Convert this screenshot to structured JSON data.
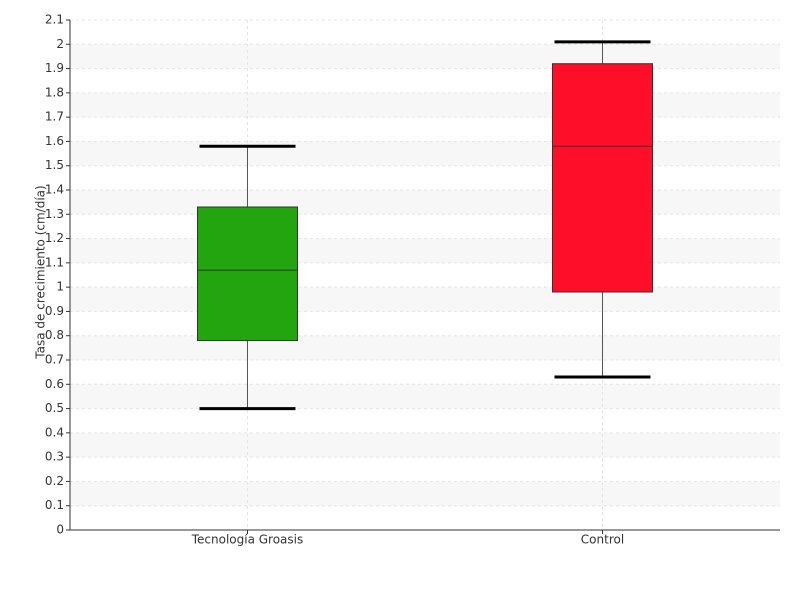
{
  "chart_data": {
    "type": "box",
    "y_label": "Tasa de crecimiento (cm/día)",
    "categories": [
      "Tecnología Groasis",
      "Control"
    ],
    "boxes": [
      {
        "min": 0.5,
        "q1": 0.78,
        "median": 1.07,
        "q3": 1.33,
        "max": 1.58,
        "color": "#22a50f"
      },
      {
        "min": 0.63,
        "q1": 0.98,
        "median": 1.58,
        "q3": 1.92,
        "max": 2.01,
        "color": "#ff0e2a"
      }
    ],
    "ylim": [
      0,
      2.1
    ],
    "yticks": [
      0,
      0.1,
      0.2,
      0.3,
      0.4,
      0.5,
      0.6,
      0.7,
      0.8,
      0.9,
      1,
      1.1,
      1.2,
      1.3,
      1.4,
      1.5,
      1.6,
      1.7,
      1.8,
      1.9,
      2,
      2.1
    ],
    "grid": true
  }
}
